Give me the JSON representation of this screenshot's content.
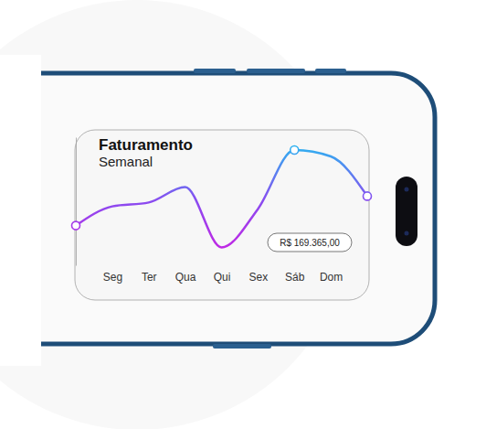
{
  "chart_data": {
    "type": "line",
    "title": "Faturamento",
    "subtitle": "Semanal",
    "categories": [
      null,
      "Seg",
      "Ter",
      "Qua",
      "Qui",
      "Sex",
      "Sáb",
      "Dom",
      null
    ],
    "values": [
      31,
      46,
      49,
      61,
      14,
      44,
      90,
      85,
      54
    ],
    "color": "#8a4bf0",
    "marker": "circle",
    "ylim": [
      0,
      100
    ],
    "yticks": [],
    "tick_labels": "x",
    "annotations": [
      "R$ 169.365,00"
    ]
  }
}
